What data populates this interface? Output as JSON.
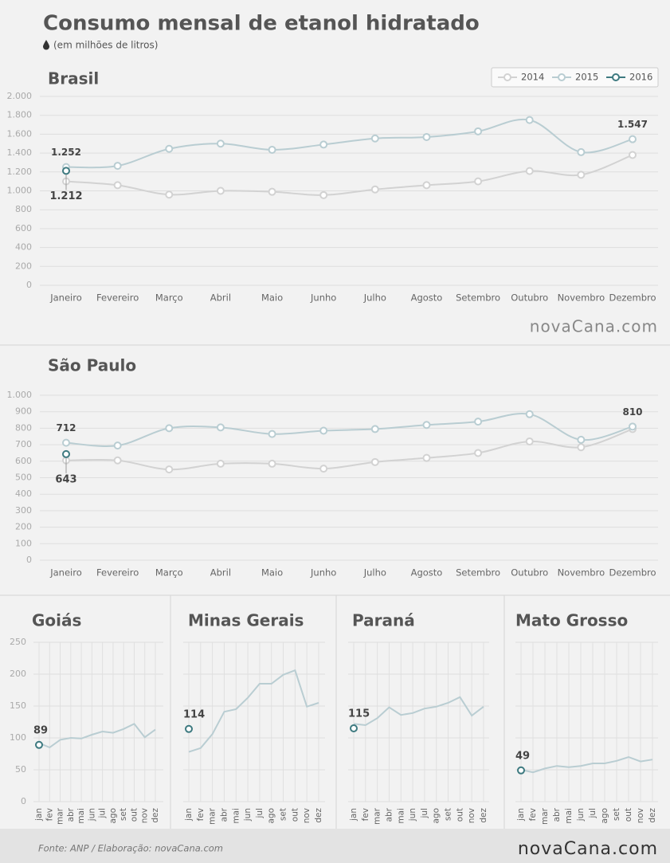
{
  "title": "Consumo mensal de etanol hidratado",
  "subtitle": "(em milhões de litros)",
  "source": "Fonte: ANP / Elaboração: novaCana.com",
  "brand": "novaCana.com",
  "chart_data": [
    {
      "type": "line",
      "title": "Brasil",
      "categories": [
        "Janeiro",
        "Fevereiro",
        "Março",
        "Abril",
        "Maio",
        "Junho",
        "Julho",
        "Agosto",
        "Setembro",
        "Outubro",
        "Novembro",
        "Dezembro"
      ],
      "series": [
        {
          "name": "2014",
          "color": "#d2d2d2",
          "values": [
            1100,
            1060,
            960,
            1000,
            990,
            955,
            1015,
            1060,
            1100,
            1210,
            1170,
            1380
          ]
        },
        {
          "name": "2015",
          "color": "#b9cdd2",
          "values": [
            1252,
            1265,
            1445,
            1500,
            1435,
            1490,
            1555,
            1570,
            1630,
            1750,
            1410,
            1547
          ],
          "value_labels": [
            "1.252",
            null,
            null,
            null,
            null,
            null,
            null,
            null,
            null,
            null,
            null,
            "1.547"
          ]
        },
        {
          "name": "2016",
          "color": "#3e7a80",
          "values": [
            1212,
            null,
            null,
            null,
            null,
            null,
            null,
            null,
            null,
            null,
            null,
            null
          ],
          "value_labels": [
            "1.212",
            null,
            null,
            null,
            null,
            null,
            null,
            null,
            null,
            null,
            null,
            null
          ]
        }
      ],
      "ylim": [
        0,
        2000
      ],
      "yticks": [
        0,
        200,
        400,
        600,
        800,
        {
          "value": 1000,
          "label": "1.000"
        },
        {
          "value": 1200,
          "label": "1.200"
        },
        {
          "value": 1400,
          "label": "1.400"
        },
        {
          "value": 1600,
          "label": "1.600"
        },
        {
          "value": 1800,
          "label": "1.800"
        },
        {
          "value": 2000,
          "label": "2.000"
        }
      ],
      "grid": true,
      "legend": "top-right"
    },
    {
      "type": "line",
      "title": "São Paulo",
      "categories": [
        "Janeiro",
        "Fevereiro",
        "Março",
        "Abril",
        "Maio",
        "Junho",
        "Julho",
        "Agosto",
        "Setembro",
        "Outubro",
        "Novembro",
        "Dezembro"
      ],
      "series": [
        {
          "name": "2014",
          "color": "#d2d2d2",
          "values": [
            605,
            605,
            550,
            585,
            585,
            555,
            595,
            620,
            650,
            720,
            685,
            795
          ]
        },
        {
          "name": "2015",
          "color": "#b9cdd2",
          "values": [
            712,
            695,
            800,
            805,
            765,
            785,
            795,
            820,
            840,
            885,
            730,
            810
          ],
          "value_labels": [
            "712",
            null,
            null,
            null,
            null,
            null,
            null,
            null,
            null,
            null,
            null,
            "810"
          ]
        },
        {
          "name": "2016",
          "color": "#3e7a80",
          "values": [
            643,
            null,
            null,
            null,
            null,
            null,
            null,
            null,
            null,
            null,
            null,
            null
          ],
          "value_labels": [
            "643",
            null,
            null,
            null,
            null,
            null,
            null,
            null,
            null,
            null,
            null,
            null
          ]
        }
      ],
      "ylim": [
        0,
        1000
      ],
      "yticks": [
        0,
        100,
        200,
        300,
        400,
        500,
        600,
        700,
        800,
        900,
        {
          "value": 1000,
          "label": "1.000"
        }
      ],
      "grid": true
    },
    {
      "type": "small-line",
      "title": "Goiás",
      "categories": [
        "jan",
        "fev",
        "mar",
        "abr",
        "mai",
        "jun",
        "jul",
        "ago",
        "set",
        "out",
        "nov",
        "dez"
      ],
      "series": [
        {
          "color": "#b9cdd2",
          "values": [
            92,
            85,
            97,
            100,
            99,
            105,
            110,
            108,
            114,
            122,
            101,
            113
          ]
        },
        {
          "color": "#3e7a80",
          "values": [
            89,
            null,
            null,
            null,
            null,
            null,
            null,
            null,
            null,
            null,
            null,
            null
          ],
          "data_labels": true
        }
      ],
      "ylim": [
        0,
        250
      ],
      "yticks": [
        0,
        50,
        100,
        150,
        200,
        250
      ],
      "ytick_labels": true,
      "grid": true
    },
    {
      "type": "small-line",
      "title": "Minas Gerais",
      "categories": [
        "jan",
        "fev",
        "mar",
        "abr",
        "mai",
        "jun",
        "jul",
        "ago",
        "set",
        "out",
        "nov",
        "dez"
      ],
      "series": [
        {
          "color": "#b9cdd2",
          "values": [
            78,
            84,
            106,
            141,
            145,
            163,
            185,
            185,
            199,
            206,
            149,
            155
          ]
        },
        {
          "color": "#3e7a80",
          "values": [
            114,
            null,
            null,
            null,
            null,
            null,
            null,
            null,
            null,
            null,
            null,
            null
          ],
          "data_labels": true
        }
      ],
      "ylim": [
        0,
        250
      ],
      "yticks": [
        0,
        50,
        100,
        150,
        200,
        250
      ],
      "ytick_labels": false,
      "grid": true
    },
    {
      "type": "small-line",
      "title": "Paraná",
      "categories": [
        "jan",
        "fev",
        "mar",
        "abr",
        "mai",
        "jun",
        "jul",
        "ago",
        "set",
        "out",
        "nov",
        "dez"
      ],
      "series": [
        {
          "color": "#b9cdd2",
          "values": [
            122,
            120,
            131,
            148,
            136,
            139,
            146,
            149,
            155,
            164,
            135,
            149
          ]
        },
        {
          "color": "#3e7a80",
          "values": [
            115,
            null,
            null,
            null,
            null,
            null,
            null,
            null,
            null,
            null,
            null,
            null
          ],
          "data_labels": true
        }
      ],
      "ylim": [
        0,
        250
      ],
      "yticks": [
        0,
        50,
        100,
        150,
        200,
        250
      ],
      "ytick_labels": false,
      "grid": true
    },
    {
      "type": "small-line",
      "title": "Mato Grosso",
      "categories": [
        "jan",
        "fev",
        "mar",
        "abr",
        "mai",
        "jun",
        "jul",
        "ago",
        "set",
        "out",
        "nov",
        "dez"
      ],
      "series": [
        {
          "color": "#b9cdd2",
          "values": [
            50,
            46,
            52,
            56,
            54,
            56,
            60,
            60,
            64,
            70,
            63,
            66
          ]
        },
        {
          "color": "#3e7a80",
          "values": [
            49,
            null,
            null,
            null,
            null,
            null,
            null,
            null,
            null,
            null,
            null,
            null
          ],
          "data_labels": true
        }
      ],
      "ylim": [
        0,
        250
      ],
      "yticks": [
        0,
        50,
        100,
        150,
        200,
        250
      ],
      "ytick_labels": false,
      "grid": true
    }
  ]
}
